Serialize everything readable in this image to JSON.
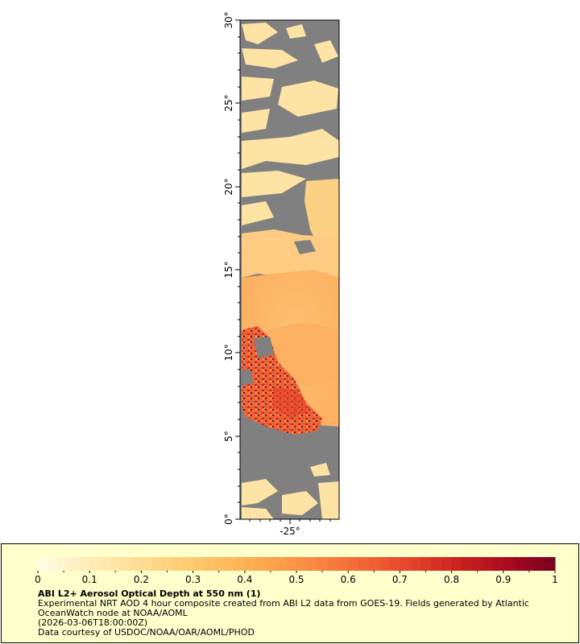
{
  "map": {
    "lat_ticks": [
      "0°",
      "5°",
      "10°",
      "15°",
      "20°",
      "25°",
      "30°"
    ],
    "lon_ticks": [
      "-25°"
    ],
    "colors": {
      "land_mask_gray": "#808080",
      "low_aod": "#fde9a8",
      "mid_aod": "#fcc066",
      "high_aod": "#e0301e",
      "very_high_aod": "#8b0a1a"
    }
  },
  "colorbar": {
    "ticks": [
      "0",
      "0.1",
      "0.2",
      "0.3",
      "0.4",
      "0.5",
      "0.6",
      "0.7",
      "0.8",
      "0.9",
      "1"
    ],
    "range": [
      0,
      1
    ],
    "colors": [
      "#fffbe6",
      "#feeebb",
      "#fde09a",
      "#fdcf77",
      "#fdbb5c",
      "#fca24a",
      "#f98440",
      "#f26334",
      "#e3412a",
      "#c9201f",
      "#a80b20",
      "#7a0020"
    ]
  },
  "caption": {
    "title": "ABI L2+ Aerosol Optical Depth at 550 nm (1)",
    "description": "Experimental NRT AOD 4 hour composite created from ABI L2 data from GOES-19. Fields generated by Atlantic OceanWatch node at NOAA/AOML",
    "time": "(2026-03-06T18:00:00Z)",
    "credit": "Data courtesy of USDOC/NOAA/OAR/AOML/PHOD"
  }
}
